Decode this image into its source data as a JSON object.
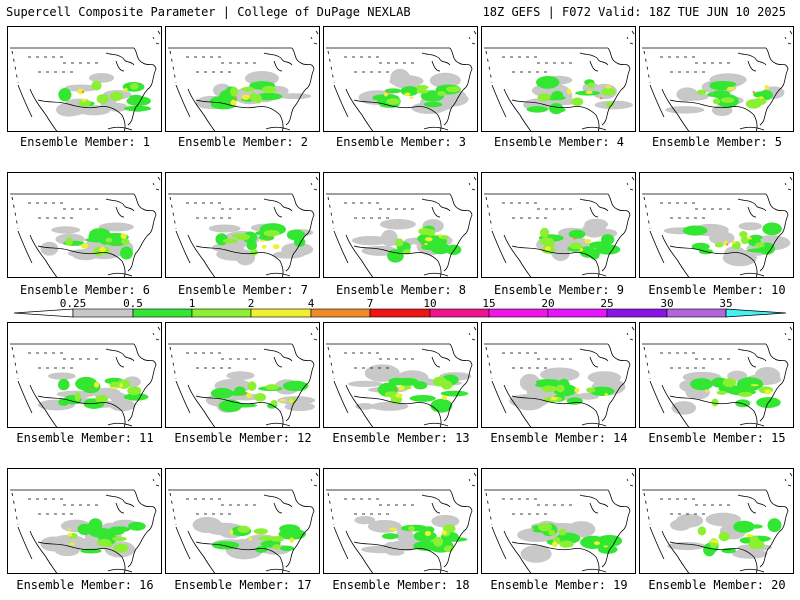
{
  "header": {
    "title_left": "Supercell Composite Parameter | College of DuPage NEXLAB",
    "title_right": "18Z GEFS | F072 Valid: 18Z TUE JUN 10 2025"
  },
  "colorbar": {
    "ticks": [
      "0.25",
      "0.5",
      "1",
      "2",
      "4",
      "7",
      "10",
      "15",
      "20",
      "25",
      "30",
      "35"
    ],
    "colors": [
      "#c8c8c8",
      "#32e632",
      "#8cf032",
      "#f0f032",
      "#f08c28",
      "#f01414",
      "#f0148c",
      "#f014e6",
      "#e614ff",
      "#8c14e6",
      "#b464dc",
      "#46f0f0"
    ]
  },
  "members": [
    {
      "label": "Ensemble Member: 1"
    },
    {
      "label": "Ensemble Member: 2"
    },
    {
      "label": "Ensemble Member: 3"
    },
    {
      "label": "Ensemble Member: 4"
    },
    {
      "label": "Ensemble Member: 5"
    },
    {
      "label": "Ensemble Member: 6"
    },
    {
      "label": "Ensemble Member: 7"
    },
    {
      "label": "Ensemble Member: 8"
    },
    {
      "label": "Ensemble Member: 9"
    },
    {
      "label": "Ensemble Member: 10"
    },
    {
      "label": "Ensemble Member: 11"
    },
    {
      "label": "Ensemble Member: 12"
    },
    {
      "label": "Ensemble Member: 13"
    },
    {
      "label": "Ensemble Member: 14"
    },
    {
      "label": "Ensemble Member: 15"
    },
    {
      "label": "Ensemble Member: 16"
    },
    {
      "label": "Ensemble Member: 17"
    },
    {
      "label": "Ensemble Member: 18"
    },
    {
      "label": "Ensemble Member: 19"
    },
    {
      "label": "Ensemble Member: 20"
    }
  ]
}
